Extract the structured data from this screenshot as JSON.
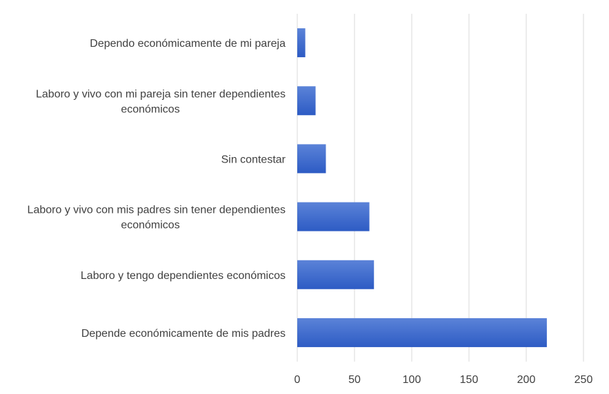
{
  "chart_data": {
    "type": "bar",
    "orientation": "horizontal",
    "title": "",
    "xlabel": "",
    "ylabel": "",
    "categories": [
      [
        "Depende económicamente de mis padres"
      ],
      [
        "Laboro y tengo dependientes económicos"
      ],
      [
        "Laboro y vivo con mis padres sin tener dependientes",
        "económicos"
      ],
      [
        "Sin contestar"
      ],
      [
        "Laboro y vivo con mi pareja sin tener dependientes",
        "económicos"
      ],
      [
        "Dependo económicamente de mi pareja"
      ]
    ],
    "values": [
      218,
      67,
      63,
      25,
      16,
      7
    ],
    "xlim": [
      0,
      250
    ],
    "xticks": [
      0,
      50,
      100,
      150,
      200,
      250
    ],
    "grid": true,
    "legend": "none",
    "colors": {
      "bar_top": "#5b83d8",
      "bar_bottom": "#2d5bc4",
      "grid": "#d9d9d9",
      "text": "#404040"
    }
  }
}
